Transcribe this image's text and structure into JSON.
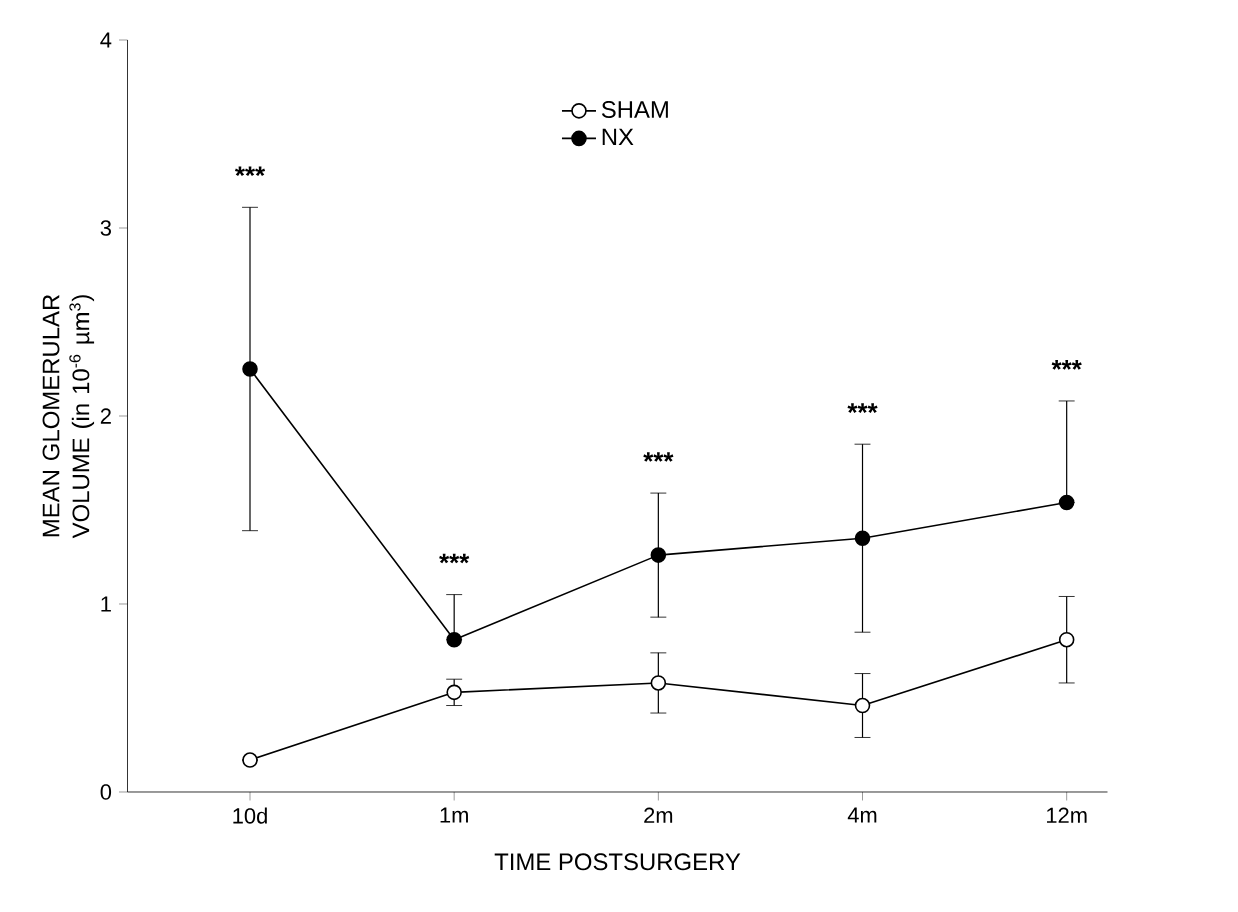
{
  "chart_data": {
    "type": "line",
    "xlabel": "TIME POSTSURGERY",
    "ylabel": "MEAN GLOMERULAR VOLUME (in 10$^{-6}$ µm$^{3}$)",
    "categories": [
      "10d",
      "1m",
      "2m",
      "4m",
      "12m"
    ],
    "series": [
      {
        "name": "SHAM",
        "color": "#ffffff",
        "values": [
          0.17,
          0.53,
          0.58,
          0.46,
          0.81
        ],
        "errors": [
          null,
          0.07,
          0.16,
          0.17,
          0.23
        ]
      },
      {
        "name": "NX",
        "color": "#000000",
        "values": [
          2.25,
          0.81,
          1.26,
          1.35,
          1.54
        ],
        "errors": [
          0.86,
          [
            0.81,
            1.05
          ],
          0.33,
          0.5,
          [
            1.54,
            2.08
          ]
        ]
      }
    ],
    "ylim": [
      0,
      4
    ],
    "yticks": [
      0,
      1,
      2,
      3,
      4
    ],
    "marker": "circle",
    "legend": "top",
    "grid": false,
    "annotations": [
      "***",
      "***",
      "***",
      "***",
      "***"
    ]
  }
}
